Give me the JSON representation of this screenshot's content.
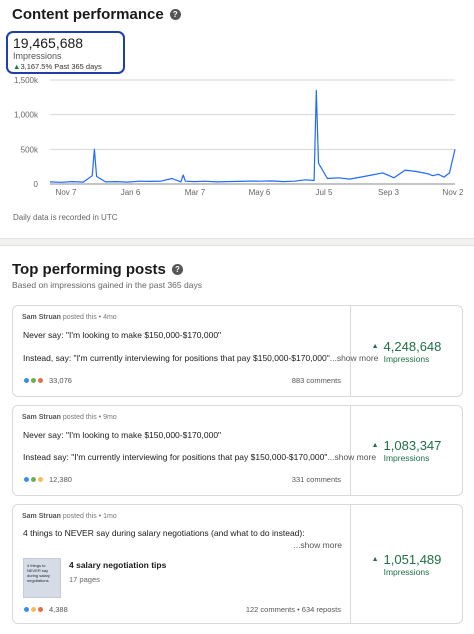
{
  "header": {
    "title": "Content performance"
  },
  "metric": {
    "value": "19,465,688",
    "label": "Impressions",
    "change": "3,167.5%",
    "period": "Past 365 days"
  },
  "chart_data": {
    "type": "line",
    "x_labels": [
      "Nov 7",
      "Jan 6",
      "Mar 7",
      "May 6",
      "Jul 5",
      "Sep 3",
      "Nov 2"
    ],
    "y_ticks": [
      "1,500k",
      "1,000k",
      "500k",
      "0"
    ],
    "ylim": [
      0,
      1500000
    ],
    "series_color": "#1f69ff",
    "grid": true,
    "note": "Daily data is recorded in UTC",
    "x": [
      0,
      10,
      20,
      30,
      38,
      40,
      42,
      50,
      60,
      70,
      80,
      90,
      100,
      110,
      118,
      120,
      122,
      130,
      140,
      150,
      160,
      170,
      180,
      190,
      200,
      210,
      220,
      230,
      238,
      240,
      242,
      250,
      260,
      270,
      280,
      290,
      300,
      310,
      320,
      330,
      340,
      345,
      350,
      355,
      360,
      365
    ],
    "values": [
      30000,
      25000,
      35000,
      28000,
      120000,
      500000,
      110000,
      30000,
      35000,
      28000,
      40000,
      38000,
      42000,
      80000,
      30000,
      130000,
      40000,
      35000,
      40000,
      30000,
      35000,
      38000,
      42000,
      40000,
      45000,
      35000,
      40000,
      60000,
      50000,
      1350000,
      300000,
      80000,
      90000,
      70000,
      100000,
      130000,
      160000,
      90000,
      200000,
      180000,
      150000,
      120000,
      140000,
      100000,
      160000,
      500000
    ]
  },
  "top_posts": {
    "title": "Top performing posts",
    "subtitle": "Based on impressions gained in the past 365 days",
    "posts": [
      {
        "author": "Sam Struan",
        "posted": "posted this",
        "age": "4mo",
        "line1": "Never say: \"I'm looking to make $150,000-$170,000\"",
        "line2": "Instead, say: \"I'm currently interviewing for positions that pay $150,000-$170,000\"",
        "show_more": "...show more",
        "reactions": "33,076",
        "comments": "883 comments",
        "impressions": "4,248,648",
        "impressions_label": "Impressions"
      },
      {
        "author": "Sam Struan",
        "posted": "posted this",
        "age": "9mo",
        "line1": "Never say: \"I'm looking to make $150,000-$170,000\"",
        "line2": "Instead say: \"I'm currently interviewing for positions that pay $150,000-$170,000\"",
        "show_more": "...show more",
        "reactions": "12,380",
        "comments": "331 comments",
        "impressions": "1,083,347",
        "impressions_label": "Impressions"
      },
      {
        "author": "Sam Struan",
        "posted": "posted this",
        "age": "1mo",
        "line1": "4 things to NEVER say during salary negotiations (and what to do instead):",
        "show_more": "...show more",
        "doc_title": "4 salary negotiation tips",
        "doc_pages": "17 pages",
        "doc_thumb_text": "4 things to NEVER say during salary negotiations",
        "reactions": "4,388",
        "comments": "122 comments • 634 reposts",
        "impressions": "1,051,489",
        "impressions_label": "Impressions"
      }
    ]
  }
}
